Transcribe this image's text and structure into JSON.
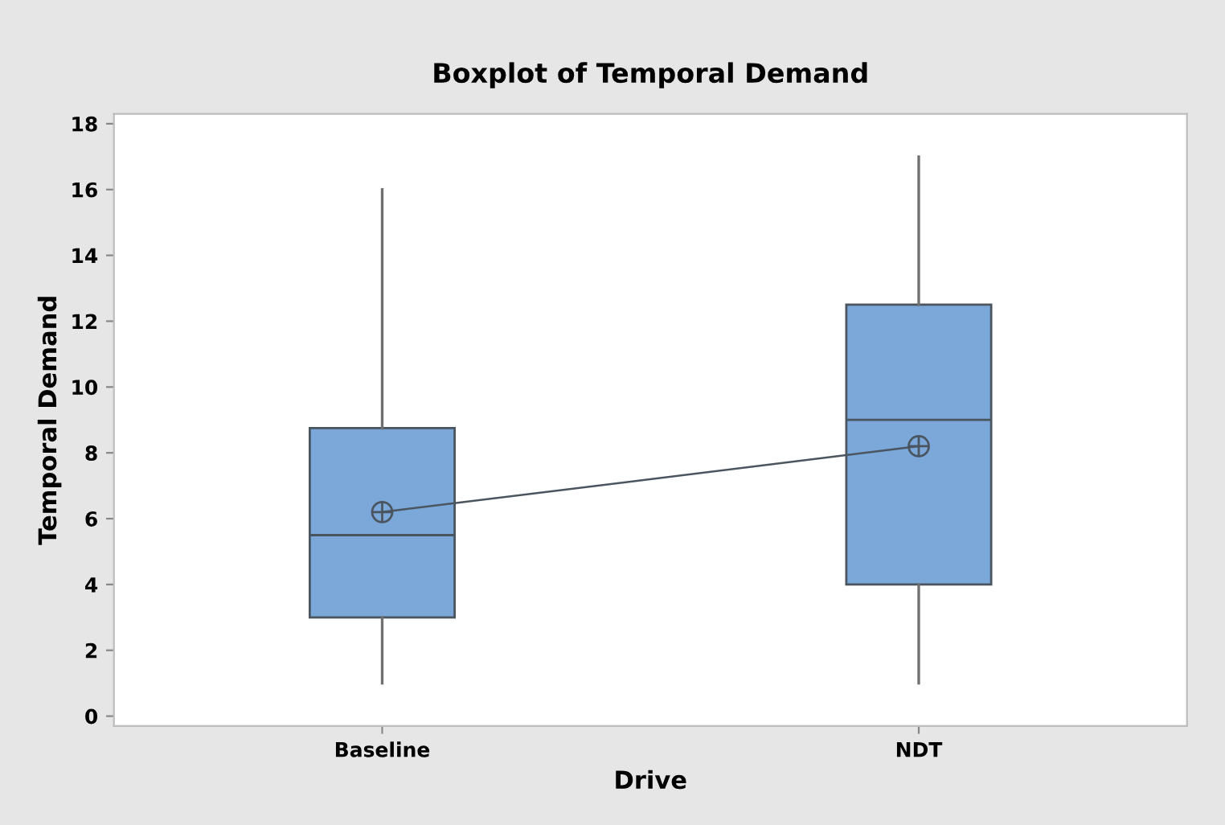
{
  "chart_data": {
    "type": "box",
    "title": "Boxplot of Temporal Demand",
    "xlabel": "Drive",
    "ylabel": "Temporal Demand",
    "categories": [
      "Baseline",
      "NDT"
    ],
    "boxes": [
      {
        "low": 1,
        "q1": 3,
        "median": 5.5,
        "q3": 8.75,
        "high": 16,
        "mean": 6.2
      },
      {
        "low": 1,
        "q1": 4,
        "median": 9,
        "q3": 12.5,
        "high": 17,
        "mean": 8.2
      }
    ],
    "series": [
      {
        "type": "line",
        "x": [
          "Baseline",
          "NDT"
        ],
        "values": [
          6.2,
          8.2
        ],
        "color": "#4a5560"
      }
    ],
    "color": "#7ba7d9",
    "ylim": [
      -0.3,
      18.3
    ],
    "yticks": [
      0,
      2,
      4,
      6,
      8,
      10,
      12,
      14,
      16,
      18
    ],
    "grid": false,
    "legend": false
  }
}
